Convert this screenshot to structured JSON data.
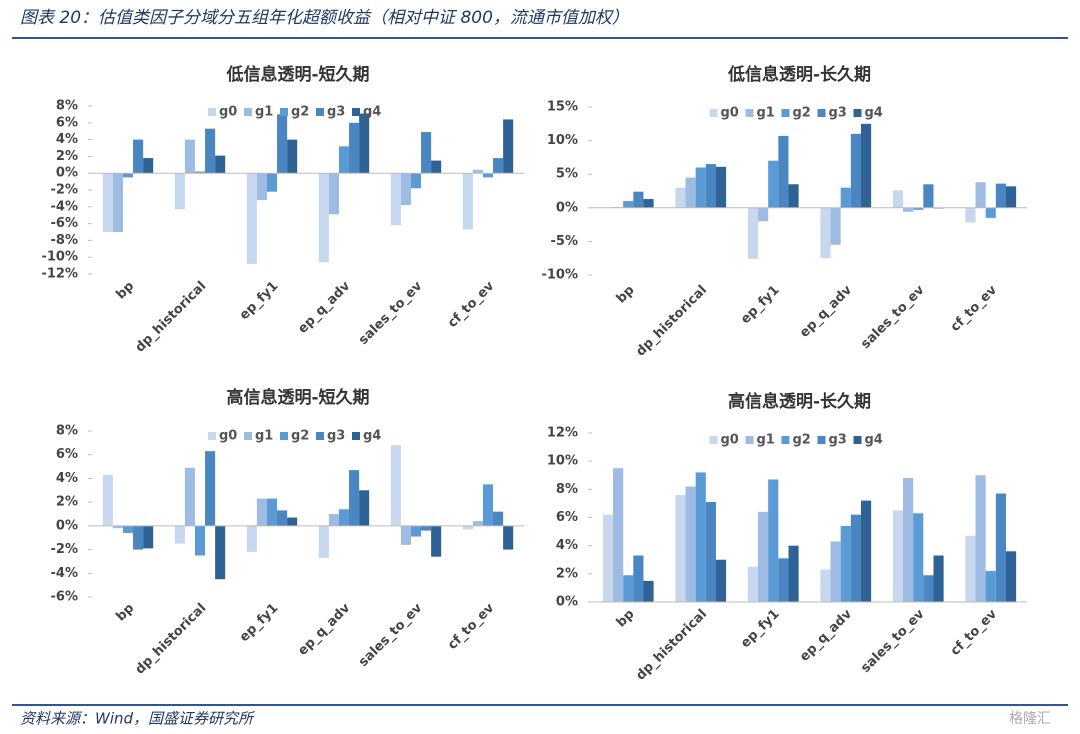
{
  "figure_title": "图表 20：估值类因子分域分五组年化超额收益（相对中证 800，流通市值加权）",
  "source": "资料来源：Wind，国盛证券研究所",
  "watermark": "格隆汇",
  "chart_data": [
    {
      "type": "bar",
      "title": "低信息透明-短久期",
      "categories": [
        "bp",
        "dp_historical",
        "ep_fy1",
        "ep_q_adv",
        "sales_to_ev",
        "cf_to_ev"
      ],
      "ylim": [
        -12,
        8
      ],
      "yticks": [
        {
          "value": -12,
          "label": "-12%"
        },
        {
          "value": -10,
          "label": "-10%"
        },
        {
          "value": -8,
          "label": "-8%"
        },
        {
          "value": -6,
          "label": "-6%"
        },
        {
          "value": -4,
          "label": "-4%"
        },
        {
          "value": -2,
          "label": "-2%"
        },
        {
          "value": 0,
          "label": "0%"
        },
        {
          "value": 2,
          "label": "2%"
        },
        {
          "value": 4,
          "label": "4%"
        },
        {
          "value": 6,
          "label": "6%"
        },
        {
          "value": 8,
          "label": "8%"
        }
      ],
      "series": [
        {
          "name": "g0",
          "color": "#c6d7ee",
          "values": [
            -7,
            -4.3,
            -10.8,
            -10.6,
            -6.2,
            -6.7
          ]
        },
        {
          "name": "g1",
          "color": "#9dbbe3",
          "values": [
            -7,
            4,
            -3.2,
            -4.9,
            -3.8,
            0.4
          ]
        },
        {
          "name": "g2",
          "color": "#5b9bd5",
          "values": [
            -0.5,
            0.2,
            -2.2,
            3.2,
            -1.8,
            -0.5
          ]
        },
        {
          "name": "g3",
          "color": "#4a86c2",
          "values": [
            4,
            5.3,
            7,
            6,
            4.9,
            1.8
          ]
        },
        {
          "name": "g4",
          "color": "#2f6396",
          "values": [
            1.8,
            2.1,
            4,
            7.1,
            1.5,
            6.4
          ]
        }
      ]
    },
    {
      "type": "bar",
      "title": "低信息透明-长久期",
      "categories": [
        "bp",
        "dp_historical",
        "ep_fy1",
        "ep_q_adv",
        "sales_to_ev",
        "cf_to_ev"
      ],
      "ylim": [
        -10,
        15
      ],
      "yticks": [
        {
          "value": -10,
          "label": "-10%"
        },
        {
          "value": -5,
          "label": "-5%"
        },
        {
          "value": 0,
          "label": "0%"
        },
        {
          "value": 5,
          "label": "5%"
        },
        {
          "value": 10,
          "label": "10%"
        },
        {
          "value": 15,
          "label": "15%"
        }
      ],
      "series": [
        {
          "name": "g0",
          "color": "#c6d7ee",
          "values": [
            0,
            3,
            -7.6,
            -7.5,
            2.6,
            -2.2
          ]
        },
        {
          "name": "g1",
          "color": "#9dbbe3",
          "values": [
            0.1,
            4.5,
            -2,
            -5.5,
            -0.6,
            3.8
          ]
        },
        {
          "name": "g2",
          "color": "#5b9bd5",
          "values": [
            1,
            6,
            7,
            3,
            -0.3,
            -1.5
          ]
        },
        {
          "name": "g3",
          "color": "#4a86c2",
          "values": [
            2.4,
            6.5,
            10.7,
            11,
            3.5,
            3.6
          ]
        },
        {
          "name": "g4",
          "color": "#2f6396",
          "values": [
            1.3,
            6.1,
            3.5,
            12.5,
            -0.1,
            3.2
          ]
        }
      ]
    },
    {
      "type": "bar",
      "title": "高信息透明-短久期",
      "categories": [
        "bp",
        "dp_historical",
        "ep_fy1",
        "ep_q_adv",
        "sales_to_ev",
        "cf_to_ev"
      ],
      "ylim": [
        -6,
        8
      ],
      "yticks": [
        {
          "value": -6,
          "label": "-6%"
        },
        {
          "value": -4,
          "label": "-4%"
        },
        {
          "value": -2,
          "label": "-2%"
        },
        {
          "value": 0,
          "label": "0%"
        },
        {
          "value": 2,
          "label": "2%"
        },
        {
          "value": 4,
          "label": "4%"
        },
        {
          "value": 6,
          "label": "6%"
        },
        {
          "value": 8,
          "label": "8%"
        }
      ],
      "series": [
        {
          "name": "g0",
          "color": "#c6d7ee",
          "values": [
            4.3,
            -1.5,
            -2.2,
            -2.7,
            6.8,
            -0.3
          ]
        },
        {
          "name": "g1",
          "color": "#9dbbe3",
          "values": [
            -0.2,
            4.9,
            2.3,
            1,
            -1.6,
            0.4
          ]
        },
        {
          "name": "g2",
          "color": "#5b9bd5",
          "values": [
            -0.6,
            -2.5,
            2.3,
            1.4,
            -0.9,
            3.5
          ]
        },
        {
          "name": "g3",
          "color": "#4a86c2",
          "values": [
            -2,
            6.3,
            1.3,
            4.7,
            -0.4,
            1.2
          ]
        },
        {
          "name": "g4",
          "color": "#2f6396",
          "values": [
            -1.9,
            -4.5,
            0.7,
            3,
            -2.6,
            -2
          ]
        }
      ]
    },
    {
      "type": "bar",
      "title": "高信息透明-长久期",
      "categories": [
        "bp",
        "dp_historical",
        "ep_fy1",
        "ep_q_adv",
        "sales_to_ev",
        "cf_to_ev"
      ],
      "ylim": [
        0,
        12
      ],
      "yticks": [
        {
          "value": 0,
          "label": "0%"
        },
        {
          "value": 2,
          "label": "2%"
        },
        {
          "value": 4,
          "label": "4%"
        },
        {
          "value": 6,
          "label": "6%"
        },
        {
          "value": 8,
          "label": "8%"
        },
        {
          "value": 10,
          "label": "10%"
        },
        {
          "value": 12,
          "label": "12%"
        }
      ],
      "series": [
        {
          "name": "g0",
          "color": "#c6d7ee",
          "values": [
            6.2,
            7.6,
            2.5,
            2.3,
            6.5,
            4.7
          ]
        },
        {
          "name": "g1",
          "color": "#9dbbe3",
          "values": [
            9.5,
            8.2,
            6.4,
            4.3,
            8.8,
            9
          ]
        },
        {
          "name": "g2",
          "color": "#5b9bd5",
          "values": [
            1.9,
            9.2,
            8.7,
            5.4,
            6.3,
            2.2
          ]
        },
        {
          "name": "g3",
          "color": "#4a86c2",
          "values": [
            3.3,
            7.1,
            3.1,
            6.2,
            1.9,
            7.7
          ]
        },
        {
          "name": "g4",
          "color": "#2f6396",
          "values": [
            1.5,
            3,
            4,
            7.2,
            3.3,
            3.6
          ]
        }
      ]
    }
  ]
}
